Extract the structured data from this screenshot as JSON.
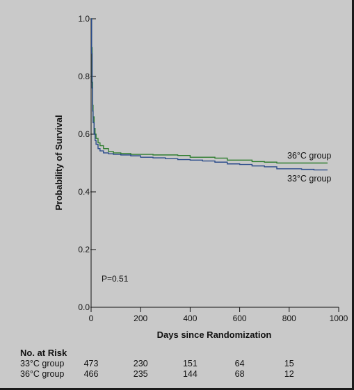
{
  "chart_data": {
    "type": "line",
    "xlabel": "Days since Randomization",
    "ylabel": "Probability of Survival",
    "xlim": [
      0,
      1000
    ],
    "ylim": [
      0.0,
      1.0
    ],
    "x_ticks": [
      "0",
      "200",
      "400",
      "600",
      "800",
      "1000"
    ],
    "y_ticks": [
      "0.0",
      "0.2",
      "0.4",
      "0.6",
      "0.8",
      "1.0"
    ],
    "annotation": "P=0.51",
    "grid": false,
    "series": [
      {
        "name": "36°C group",
        "color": "#2e7d2e",
        "x": [
          0,
          2,
          4,
          6,
          8,
          12,
          16,
          20,
          28,
          36,
          50,
          70,
          90,
          120,
          160,
          200,
          250,
          300,
          350,
          400,
          450,
          500,
          550,
          600,
          650,
          700,
          750,
          800,
          850,
          900,
          955
        ],
        "y": [
          1.0,
          0.9,
          0.78,
          0.7,
          0.66,
          0.62,
          0.6,
          0.585,
          0.57,
          0.56,
          0.55,
          0.54,
          0.535,
          0.533,
          0.53,
          0.53,
          0.528,
          0.528,
          0.526,
          0.52,
          0.52,
          0.517,
          0.51,
          0.51,
          0.505,
          0.503,
          0.5,
          0.5,
          0.5,
          0.5,
          0.5
        ]
      },
      {
        "name": "33°C group",
        "color": "#2a4b8a",
        "x": [
          0,
          2,
          4,
          6,
          8,
          12,
          16,
          20,
          28,
          36,
          50,
          70,
          90,
          120,
          160,
          200,
          250,
          300,
          350,
          400,
          450,
          500,
          550,
          600,
          650,
          700,
          750,
          800,
          850,
          900,
          955
        ],
        "y": [
          1.0,
          0.88,
          0.76,
          0.68,
          0.64,
          0.6,
          0.578,
          0.565,
          0.55,
          0.542,
          0.535,
          0.532,
          0.53,
          0.528,
          0.525,
          0.52,
          0.518,
          0.515,
          0.512,
          0.51,
          0.507,
          0.503,
          0.497,
          0.495,
          0.49,
          0.487,
          0.48,
          0.48,
          0.478,
          0.476,
          0.476
        ]
      }
    ]
  },
  "risk_table": {
    "header": "No. at Risk",
    "columns_days": [
      0,
      200,
      400,
      600,
      800
    ],
    "rows": [
      {
        "group": "33°C group",
        "values": [
          "473",
          "230",
          "151",
          "64",
          "15"
        ]
      },
      {
        "group": "36°C group",
        "values": [
          "466",
          "235",
          "144",
          "68",
          "12"
        ]
      }
    ]
  }
}
